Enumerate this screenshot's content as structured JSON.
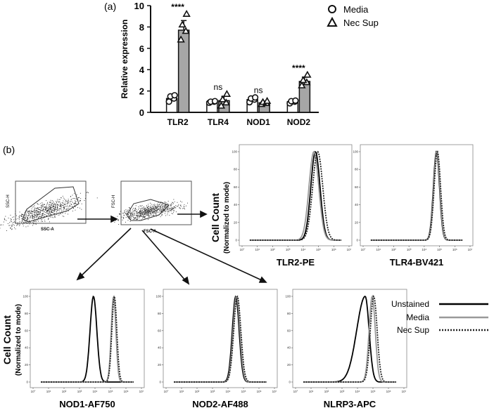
{
  "panel_labels": {
    "a": "(a)",
    "b": "(b)"
  },
  "chart_data": [
    {
      "type": "bar",
      "ylabel": "Relative expression",
      "ylim": [
        0,
        10
      ],
      "yticks": [
        "0",
        "2",
        "4",
        "6",
        "8",
        "10"
      ],
      "categories": [
        "TLR2",
        "TLR4",
        "NOD1",
        "NOD2"
      ],
      "series": [
        {
          "name": "Media",
          "values": [
            1.3,
            1.0,
            1.2,
            1.0
          ],
          "errors": [
            0.3,
            0.1,
            0.2,
            0.15
          ],
          "points": [
            [
              1.0,
              1.3,
              1.5,
              1.6
            ],
            [
              0.9,
              1.0,
              1.0,
              1.05
            ],
            [
              0.95,
              1.2,
              1.3,
              1.4
            ],
            [
              0.85,
              1.0,
              1.05,
              1.1
            ]
          ]
        },
        {
          "name": "Nec Sup",
          "values": [
            7.7,
            1.1,
            0.9,
            2.9
          ],
          "errors": [
            0.9,
            0.4,
            0.15,
            0.4
          ],
          "points": [
            [
              6.8,
              7.6,
              8.2,
              9.2
            ],
            [
              0.6,
              0.9,
              1.2,
              1.7
            ],
            [
              0.75,
              0.85,
              0.95,
              1.05
            ],
            [
              2.5,
              2.8,
              3.0,
              3.5
            ]
          ]
        }
      ],
      "significance": [
        "****",
        "ns",
        "ns",
        "****"
      ],
      "legend": [
        "Media",
        "Nec Sup"
      ],
      "grid": false
    },
    {
      "type": "line",
      "description": "flow cytometry histograms",
      "ylabel": "Cell Count",
      "ylabel_sub": "(Normalized to mode)",
      "yticks": [
        "0",
        "20",
        "40",
        "60",
        "80",
        "100"
      ],
      "xticks": [
        "10°",
        "10¹",
        "10²",
        "10³",
        "10⁴",
        "10⁵",
        "10⁶",
        "10⁷"
      ],
      "panels": [
        {
          "title": "TLR2-PE",
          "peaks": {
            "Unstained": [
              4.8,
              0.3
            ],
            "Media": [
              4.7,
              0.32
            ],
            "Nec Sup": [
              4.95,
              0.33
            ]
          }
        },
        {
          "title": "TLR4-BV421",
          "peaks": {
            "Unstained": [
              4.8,
              0.2
            ],
            "Media": [
              4.82,
              0.2
            ],
            "Nec Sup": [
              4.86,
              0.21
            ]
          }
        },
        {
          "title": "NOD1-AF750",
          "peaks": {
            "Unstained": [
              3.9,
              0.22
            ],
            "Media": [
              5.2,
              0.15
            ],
            "Nec Sup": [
              5.25,
              0.16
            ]
          }
        },
        {
          "title": "NOD2-AF488",
          "peaks": {
            "Unstained": [
              4.5,
              0.22
            ],
            "Media": [
              4.55,
              0.22
            ],
            "Nec Sup": [
              4.6,
              0.23
            ]
          }
        },
        {
          "title": "NLRP3-APC",
          "peaks": {
            "Unstained": [
              4.5,
              0.55
            ],
            "Media": [
              4.95,
              0.2
            ],
            "Nec Sup": [
              5.05,
              0.22
            ]
          }
        }
      ],
      "legend": [
        "Unstained",
        "Media",
        "Nec Sup"
      ]
    }
  ],
  "gating": {
    "plot1": {
      "ylabel": "SSC-H",
      "xlabel": "SSC-A"
    },
    "plot2": {
      "ylabel": "FSC-H",
      "xlabel": "FSC-A"
    }
  },
  "colors": {
    "bar_media": "#ffffff",
    "bar_necsup": "#a6a6a6",
    "unstained": "#000000",
    "media": "#999999",
    "necsup": "#222222"
  }
}
